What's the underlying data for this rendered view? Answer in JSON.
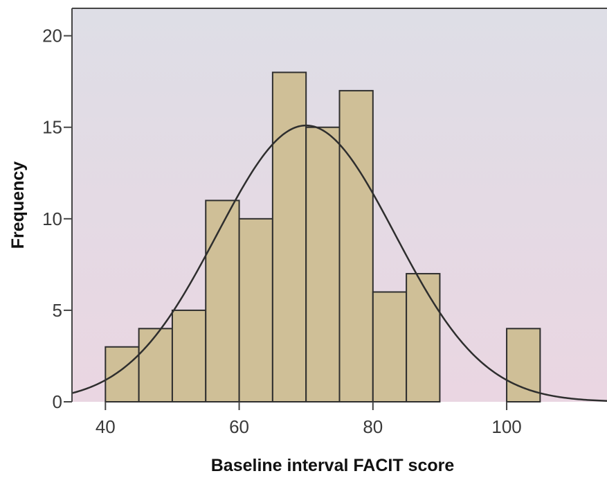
{
  "chart_data": {
    "type": "bar",
    "xlabel": "Baseline interval FACIT score",
    "ylabel": "Frequency",
    "bin_width": 5,
    "bins": [
      {
        "start": 40,
        "end": 45,
        "count": 3
      },
      {
        "start": 45,
        "end": 50,
        "count": 4
      },
      {
        "start": 50,
        "end": 55,
        "count": 5
      },
      {
        "start": 55,
        "end": 60,
        "count": 11
      },
      {
        "start": 60,
        "end": 65,
        "count": 10
      },
      {
        "start": 65,
        "end": 70,
        "count": 18
      },
      {
        "start": 70,
        "end": 75,
        "count": 15
      },
      {
        "start": 75,
        "end": 80,
        "count": 17
      },
      {
        "start": 80,
        "end": 85,
        "count": 6
      },
      {
        "start": 85,
        "end": 90,
        "count": 7
      },
      {
        "start": 100,
        "end": 105,
        "count": 4
      }
    ],
    "normal_curve": {
      "mean": 70,
      "sd": 13.3,
      "peak": 15.1
    },
    "xlim": [
      35,
      115
    ],
    "ylim": [
      0,
      21.5
    ],
    "x_ticks": [
      40,
      60,
      80,
      100
    ],
    "y_ticks": [
      0,
      5,
      10,
      15,
      20
    ],
    "grid": false,
    "colors": {
      "bar_fill": "#cfbf97",
      "bar_stroke": "#2e2e2e",
      "curve": "#2e2e2e",
      "plot_bg_top": "#dedee6",
      "plot_bg_bottom": "#ead6e2",
      "axis": "#444444"
    }
  }
}
